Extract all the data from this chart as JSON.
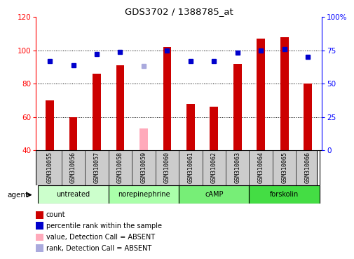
{
  "title": "GDS3702 / 1388785_at",
  "samples": [
    "GSM310055",
    "GSM310056",
    "GSM310057",
    "GSM310058",
    "GSM310059",
    "GSM310060",
    "GSM310061",
    "GSM310062",
    "GSM310063",
    "GSM310064",
    "GSM310065",
    "GSM310066"
  ],
  "bar_values": [
    70,
    60,
    86,
    91,
    null,
    102,
    68,
    66,
    92,
    107,
    108,
    80
  ],
  "bar_absent_values": [
    null,
    null,
    null,
    null,
    53,
    null,
    null,
    null,
    null,
    null,
    null,
    null
  ],
  "rank_pct": [
    67,
    64,
    72,
    74,
    null,
    75,
    67,
    67,
    73,
    75,
    76,
    70
  ],
  "rank_absent_pct": [
    null,
    null,
    null,
    null,
    63,
    null,
    null,
    null,
    null,
    null,
    null,
    null
  ],
  "bar_color": "#cc0000",
  "bar_absent_color": "#ffaabb",
  "rank_color": "#0000cc",
  "rank_absent_color": "#aaaadd",
  "ylim_left": [
    40,
    120
  ],
  "ylim_right": [
    0,
    100
  ],
  "yticks_left": [
    40,
    60,
    80,
    100,
    120
  ],
  "yticks_right": [
    0,
    25,
    50,
    75,
    100
  ],
  "yticklabels_right": [
    "0",
    "25",
    "50",
    "75",
    "100%"
  ],
  "group_defs": [
    {
      "label": "untreated",
      "start": 0,
      "end": 2,
      "color": "#ccffcc"
    },
    {
      "label": "norepinephrine",
      "start": 3,
      "end": 5,
      "color": "#aaffaa"
    },
    {
      "label": "cAMP",
      "start": 6,
      "end": 8,
      "color": "#77ee77"
    },
    {
      "label": "forskolin",
      "start": 9,
      "end": 11,
      "color": "#44dd44"
    }
  ],
  "legend_items": [
    {
      "label": "count",
      "color": "#cc0000"
    },
    {
      "label": "percentile rank within the sample",
      "color": "#0000cc"
    },
    {
      "label": "value, Detection Call = ABSENT",
      "color": "#ffaabb"
    },
    {
      "label": "rank, Detection Call = ABSENT",
      "color": "#aaaadd"
    }
  ],
  "bar_width": 0.35,
  "marker_size": 5,
  "sample_bg": "#cccccc"
}
